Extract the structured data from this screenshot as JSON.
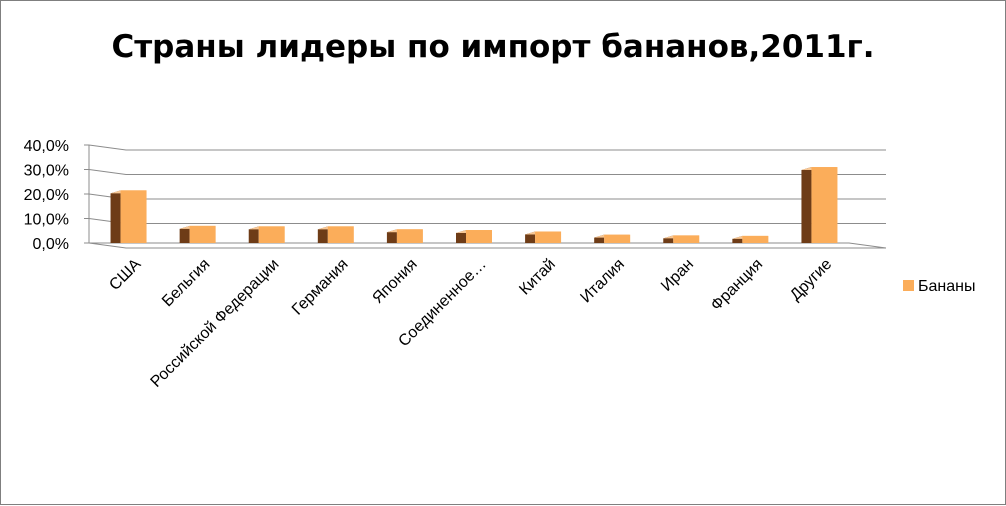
{
  "chart_data": {
    "type": "bar",
    "title": "Страны лидеры по импорт бананов,2011г.",
    "categories": [
      "США",
      "Бельгия",
      "Российской Федерации",
      "Германия",
      "Япония",
      "Соединенное…",
      "Китай",
      "Италия",
      "Иран",
      "Франция",
      "Другие"
    ],
    "series": [
      {
        "name": "Бананы",
        "values": [
          21.5,
          7.0,
          6.8,
          6.8,
          5.6,
          5.3,
          4.7,
          3.4,
          3.1,
          2.9,
          31.0
        ]
      }
    ],
    "y_ticks": [
      "0,0%",
      "10,0%",
      "20,0%",
      "30,0%",
      "40,0%"
    ],
    "ylim": [
      0,
      40
    ],
    "grid": true,
    "legend_position": "right",
    "colors": {
      "front": "#fbad5a",
      "side": "#6e3c17",
      "top": "#f7c795",
      "gridline": "#8c8c8c"
    }
  }
}
